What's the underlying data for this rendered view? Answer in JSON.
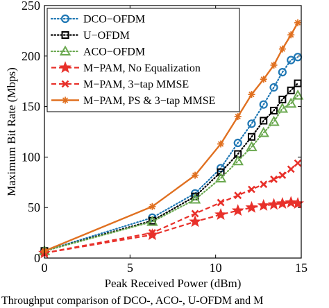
{
  "chart_data": {
    "type": "line",
    "xlabel": "Peak Received Power (dBm)",
    "ylabel": "Maximum Bit Rate (Mbps)",
    "xlim": [
      0,
      15
    ],
    "ylim": [
      0,
      250
    ],
    "xticks": [
      0,
      5,
      10,
      15
    ],
    "yticks": [
      0,
      50,
      100,
      150,
      200,
      250
    ],
    "grid": false,
    "legend_position": "top-left",
    "series": [
      {
        "name": "DCO−OFDM",
        "color": "#1f77b4",
        "line": "dotted",
        "marker": "circle",
        "x": [
          0,
          6.3,
          8.8,
          10.3,
          11.3,
          12.1,
          12.8,
          13.4,
          13.9,
          14.4,
          14.8
        ],
        "y": [
          7,
          40,
          64,
          89,
          114,
          133,
          152,
          169,
          184,
          196,
          199
        ]
      },
      {
        "name": "U−OFDM",
        "color": "#000000",
        "line": "dotted",
        "marker": "square",
        "x": [
          0,
          6.3,
          8.8,
          10.3,
          11.3,
          12.1,
          12.8,
          13.4,
          13.9,
          14.4,
          14.8
        ],
        "y": [
          7,
          37,
          61,
          85,
          103,
          120,
          136,
          146,
          157,
          166,
          173
        ]
      },
      {
        "name": "ACO−OFDM",
        "color": "#6aa84f",
        "line": "dotted",
        "marker": "triangle",
        "x": [
          0,
          6.3,
          8.8,
          10.3,
          11.3,
          12.1,
          12.8,
          13.4,
          13.9,
          14.4,
          14.8
        ],
        "y": [
          7,
          36,
          58,
          79,
          96,
          110,
          124,
          135,
          148,
          153,
          161
        ]
      },
      {
        "name": "M−PAM, No Equalization",
        "color": "#e8302a",
        "line": "dashed",
        "marker": "star",
        "x": [
          0,
          6.3,
          8.8,
          10.3,
          11.3,
          12.1,
          12.8,
          13.4,
          13.9,
          14.4,
          14.8
        ],
        "y": [
          5,
          23,
          36,
          43,
          47,
          50,
          52,
          53,
          54,
          55,
          54
        ]
      },
      {
        "name": "M−PAM, 3−tap MMSE",
        "color": "#e8302a",
        "line": "dashed",
        "marker": "x",
        "x": [
          0,
          6.3,
          8.8,
          10.3,
          11.3,
          12.1,
          12.8,
          13.4,
          13.9,
          14.4,
          14.8
        ],
        "y": [
          5,
          25,
          44,
          55,
          62,
          68,
          73,
          78,
          82,
          88,
          94
        ]
      },
      {
        "name": "M−PAM, PS & 3−tap MMSE",
        "color": "#e07020",
        "line": "solid",
        "marker": "asterisk",
        "x": [
          0,
          6.3,
          8.8,
          10.3,
          11.3,
          12.1,
          12.8,
          13.4,
          13.9,
          14.4,
          14.8
        ],
        "y": [
          7,
          51,
          82,
          113,
          140,
          162,
          177,
          191,
          207,
          221,
          233
        ]
      }
    ]
  },
  "caption": "Throughput comparison of DCO-, ACO-, U-OFDM and M"
}
